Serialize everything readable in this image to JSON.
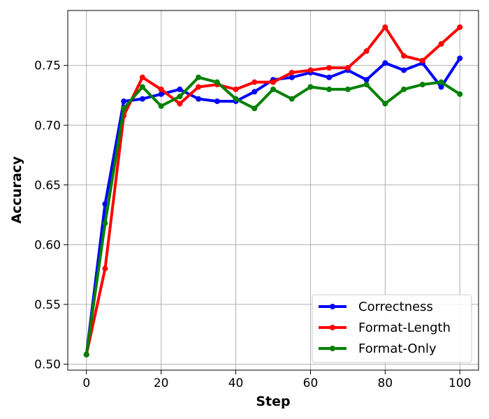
{
  "chart_data": {
    "type": "line",
    "title": "",
    "xlabel": "Step",
    "ylabel": "Accuracy",
    "xlim": [
      -5,
      105
    ],
    "ylim": [
      0.495,
      0.796
    ],
    "xticks": [
      0,
      20,
      40,
      60,
      80,
      100
    ],
    "yticks": [
      0.5,
      0.55,
      0.6,
      0.65,
      0.7,
      0.75
    ],
    "xtick_labels": [
      "0",
      "20",
      "40",
      "60",
      "80",
      "100"
    ],
    "ytick_labels": [
      "0.50",
      "0.55",
      "0.60",
      "0.65",
      "0.70",
      "0.75"
    ],
    "grid": true,
    "legend_position": "lower-right",
    "x": [
      0,
      5,
      10,
      15,
      20,
      25,
      30,
      35,
      40,
      45,
      50,
      55,
      60,
      65,
      70,
      75,
      80,
      85,
      90,
      95,
      100
    ],
    "series": [
      {
        "name": "Correctness",
        "color": "#0000ff",
        "values": [
          0.508,
          0.634,
          0.72,
          0.722,
          0.726,
          0.73,
          0.722,
          0.72,
          0.72,
          0.728,
          0.738,
          0.74,
          0.744,
          0.74,
          0.746,
          0.738,
          0.752,
          0.746,
          0.752,
          0.732,
          0.756
        ]
      },
      {
        "name": "Format-Length",
        "color": "#ff0000",
        "values": [
          0.508,
          0.58,
          0.708,
          0.74,
          0.73,
          0.718,
          0.732,
          0.734,
          0.73,
          0.736,
          0.736,
          0.744,
          0.746,
          0.748,
          0.748,
          0.762,
          0.782,
          0.758,
          0.754,
          0.768,
          0.782
        ]
      },
      {
        "name": "Format-Only",
        "color": "#008000",
        "values": [
          0.508,
          0.618,
          0.714,
          0.732,
          0.716,
          0.724,
          0.74,
          0.736,
          0.722,
          0.714,
          0.73,
          0.722,
          0.732,
          0.73,
          0.73,
          0.734,
          0.718,
          0.73,
          0.734,
          0.736,
          0.726
        ]
      }
    ]
  }
}
